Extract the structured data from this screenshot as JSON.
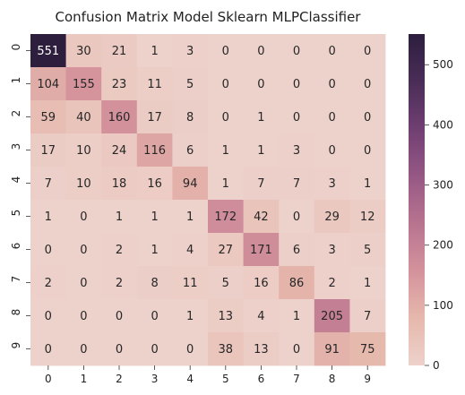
{
  "chart_data": {
    "type": "heatmap",
    "title": "Confusion Matrix Model Sklearn MLPClassifier",
    "xlabel": "",
    "ylabel": "",
    "x_labels": [
      "0",
      "1",
      "2",
      "3",
      "4",
      "5",
      "6",
      "7",
      "8",
      "9"
    ],
    "y_labels": [
      "0",
      "1",
      "2",
      "3",
      "4",
      "5",
      "6",
      "7",
      "8",
      "9"
    ],
    "values": [
      [
        551,
        30,
        21,
        1,
        3,
        0,
        0,
        0,
        0,
        0
      ],
      [
        104,
        155,
        23,
        11,
        5,
        0,
        0,
        0,
        0,
        0
      ],
      [
        59,
        40,
        160,
        17,
        8,
        0,
        1,
        0,
        0,
        0
      ],
      [
        17,
        10,
        24,
        116,
        6,
        1,
        1,
        3,
        0,
        0
      ],
      [
        7,
        10,
        18,
        16,
        94,
        1,
        7,
        7,
        3,
        1
      ],
      [
        1,
        0,
        1,
        1,
        1,
        172,
        42,
        0,
        29,
        12
      ],
      [
        0,
        0,
        2,
        1,
        4,
        27,
        171,
        6,
        3,
        5
      ],
      [
        2,
        0,
        2,
        8,
        11,
        5,
        16,
        86,
        2,
        1
      ],
      [
        0,
        0,
        0,
        0,
        1,
        13,
        4,
        1,
        205,
        7
      ],
      [
        0,
        0,
        0,
        0,
        0,
        38,
        13,
        0,
        91,
        75
      ]
    ],
    "colorbar": {
      "range": [
        0,
        551
      ],
      "ticks": [
        0,
        100,
        200,
        300,
        400,
        500
      ],
      "colors": [
        "#edd1cb",
        "#e6b8ac",
        "#d4929c",
        "#b8738f",
        "#965885",
        "#703f72",
        "#4a2d57",
        "#2d1e3e"
      ]
    }
  }
}
